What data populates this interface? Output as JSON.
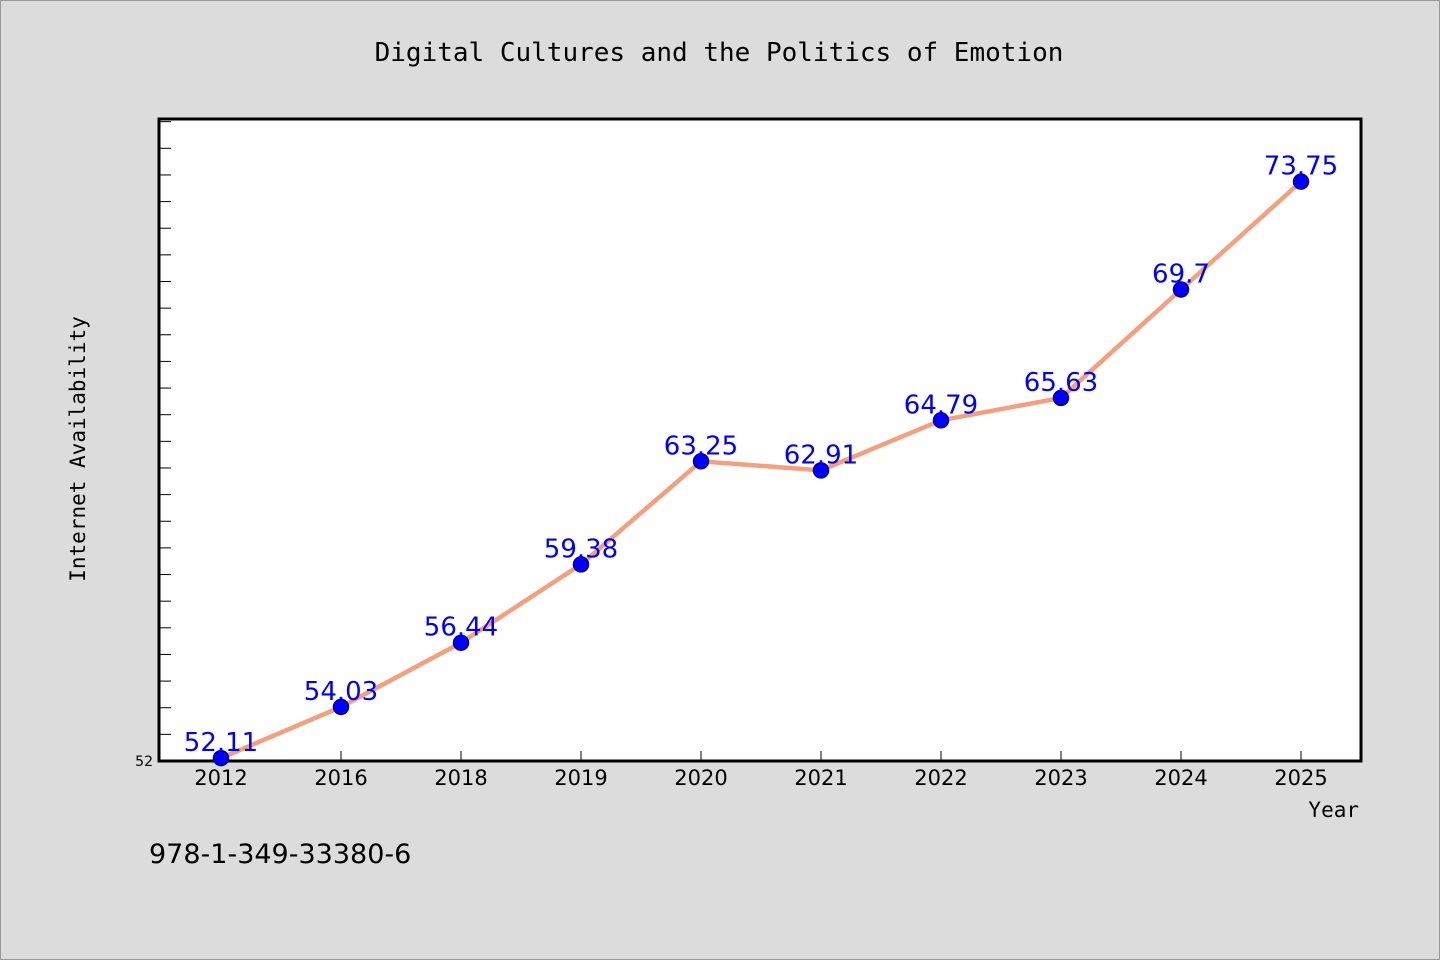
{
  "chart_data": {
    "type": "line",
    "title": "Digital Cultures and the Politics of Emotion",
    "xlabel": "Year",
    "ylabel": "Internet Availability",
    "categories": [
      "2012",
      "2016",
      "2018",
      "2019",
      "2020",
      "2021",
      "2022",
      "2023",
      "2024",
      "2025"
    ],
    "series": [
      {
        "values": [
          52.11,
          54.03,
          56.44,
          59.38,
          63.25,
          62.91,
          64.79,
          65.63,
          69.7,
          73.75
        ],
        "data_labels": [
          "52.11",
          "54.03",
          "56.44",
          "59.38",
          "63.25",
          "62.91",
          "64.79",
          "65.63",
          "69.7",
          "73.75"
        ]
      }
    ],
    "ylim": [
      52,
      76.1
    ],
    "ytick_labels": [
      "52"
    ],
    "y_minor_tick_step": 1,
    "grid": false,
    "legend": "none",
    "colors": {
      "line": "#f4a07e",
      "marker": "#0000ff",
      "marker_edge": "#00008b",
      "data_label": "#0000ff",
      "plot_background": "#ffffff",
      "figure_background": "#dcdcdc"
    }
  },
  "footer": {
    "isbn": "978-1-349-33380-6"
  }
}
